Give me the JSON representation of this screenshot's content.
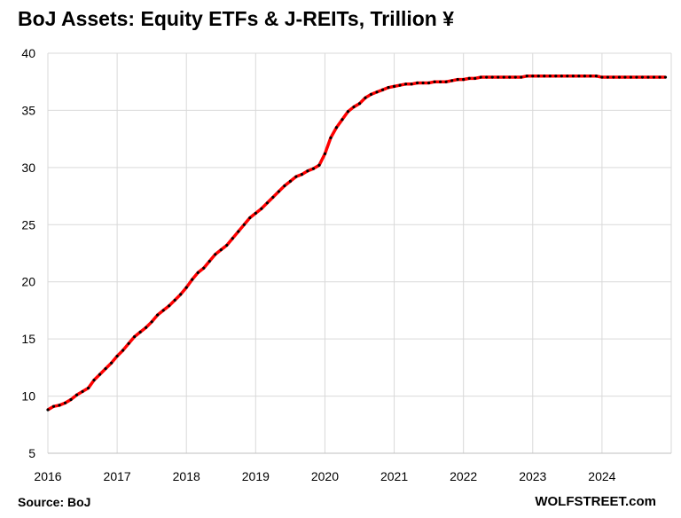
{
  "chart_data": {
    "type": "line",
    "title": "BoJ Assets: Equity ETFs & J-REITs, Trillion ¥",
    "xlabel": "",
    "ylabel": "",
    "ylim": [
      5,
      40
    ],
    "yticks": [
      "5",
      "10",
      "15",
      "20",
      "25",
      "30",
      "35",
      "40"
    ],
    "xticks": [
      "2016",
      "2017",
      "2018",
      "2019",
      "2020",
      "2021",
      "2022",
      "2023",
      "2024"
    ],
    "grid": "on",
    "line_color": "#ff0000",
    "marker_color": "#000000",
    "series": [
      {
        "x": [
          "2016-01",
          "2016-02",
          "2016-03",
          "2016-04",
          "2016-05",
          "2016-06",
          "2016-07",
          "2016-08",
          "2016-09",
          "2016-10",
          "2016-11",
          "2016-12",
          "2017-01",
          "2017-02",
          "2017-03",
          "2017-04",
          "2017-05",
          "2017-06",
          "2017-07",
          "2017-08",
          "2017-09",
          "2017-10",
          "2017-11",
          "2017-12",
          "2018-01",
          "2018-02",
          "2018-03",
          "2018-04",
          "2018-05",
          "2018-06",
          "2018-07",
          "2018-08",
          "2018-09",
          "2018-10",
          "2018-11",
          "2018-12",
          "2019-01",
          "2019-02",
          "2019-03",
          "2019-04",
          "2019-05",
          "2019-06",
          "2019-07",
          "2019-08",
          "2019-09",
          "2019-10",
          "2019-11",
          "2019-12",
          "2020-01",
          "2020-02",
          "2020-03",
          "2020-04",
          "2020-05",
          "2020-06",
          "2020-07",
          "2020-08",
          "2020-09",
          "2020-10",
          "2020-11",
          "2020-12",
          "2021-01",
          "2021-02",
          "2021-03",
          "2021-04",
          "2021-05",
          "2021-06",
          "2021-07",
          "2021-08",
          "2021-09",
          "2021-10",
          "2021-11",
          "2021-12",
          "2022-01",
          "2022-02",
          "2022-03",
          "2022-04",
          "2022-05",
          "2022-06",
          "2022-07",
          "2022-08",
          "2022-09",
          "2022-10",
          "2022-11",
          "2022-12",
          "2023-01",
          "2023-02",
          "2023-03",
          "2023-04",
          "2023-05",
          "2023-06",
          "2023-07",
          "2023-08",
          "2023-09",
          "2023-10",
          "2023-11",
          "2023-12",
          "2024-01",
          "2024-02",
          "2024-03",
          "2024-04",
          "2024-05",
          "2024-06",
          "2024-07",
          "2024-08",
          "2024-09",
          "2024-10",
          "2024-11",
          "2024-12"
        ],
        "values": [
          8.8,
          9.1,
          9.2,
          9.4,
          9.7,
          10.1,
          10.4,
          10.7,
          11.4,
          11.9,
          12.4,
          12.9,
          13.5,
          14.0,
          14.6,
          15.2,
          15.6,
          16.0,
          16.5,
          17.1,
          17.5,
          17.9,
          18.4,
          18.9,
          19.5,
          20.2,
          20.8,
          21.2,
          21.8,
          22.4,
          22.8,
          23.2,
          23.8,
          24.4,
          25.0,
          25.6,
          26.0,
          26.4,
          26.9,
          27.4,
          27.9,
          28.4,
          28.8,
          29.2,
          29.4,
          29.7,
          29.9,
          30.2,
          31.2,
          32.6,
          33.5,
          34.2,
          34.9,
          35.3,
          35.6,
          36.1,
          36.4,
          36.6,
          36.8,
          37.0,
          37.1,
          37.2,
          37.3,
          37.3,
          37.4,
          37.4,
          37.4,
          37.5,
          37.5,
          37.5,
          37.6,
          37.7,
          37.7,
          37.8,
          37.8,
          37.9,
          37.9,
          37.9,
          37.9,
          37.9,
          37.9,
          37.9,
          37.9,
          38.0,
          38.0,
          38.0,
          38.0,
          38.0,
          38.0,
          38.0,
          38.0,
          38.0,
          38.0,
          38.0,
          38.0,
          38.0,
          37.9,
          37.9,
          37.9,
          37.9,
          37.9,
          37.9,
          37.9,
          37.9,
          37.9,
          37.9,
          37.9,
          37.9
        ]
      }
    ]
  },
  "footer": {
    "source": "Source: BoJ",
    "brand": "WOLFSTREET.com"
  }
}
